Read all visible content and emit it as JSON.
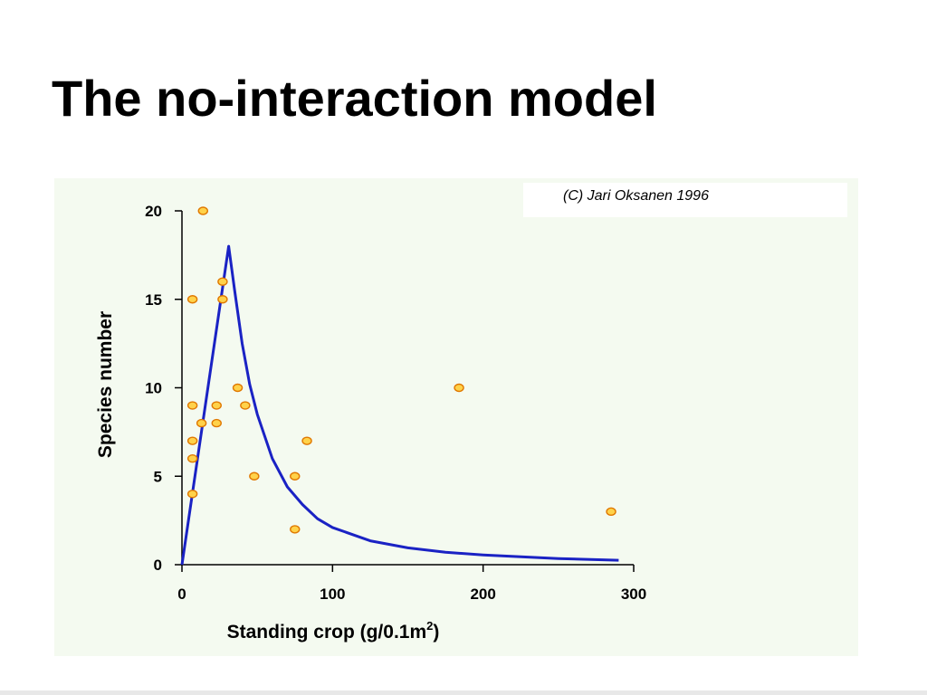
{
  "slide": {
    "title": "The no-interaction model",
    "credit": "(C) Jari Oksanen 1996"
  },
  "colors": {
    "panel_bg": "#f4faf0",
    "curve": "#1a22c4",
    "point_fill": "#ffd24a",
    "point_stroke": "#e07800"
  },
  "chart_data": {
    "type": "scatter",
    "xlabel": "Standing crop (g/0.1m",
    "xlabel_sup": "2",
    "xlabel_suffix": ")",
    "ylabel": "Species number",
    "xlim": [
      0,
      300
    ],
    "ylim": [
      0,
      20
    ],
    "x_ticks": [
      0,
      100,
      200,
      300
    ],
    "y_ticks": [
      0,
      5,
      10,
      15,
      20
    ],
    "grid": false,
    "legend": "none",
    "points": [
      {
        "x": 14,
        "y": 20
      },
      {
        "x": 7,
        "y": 15
      },
      {
        "x": 27,
        "y": 16
      },
      {
        "x": 27,
        "y": 15
      },
      {
        "x": 7,
        "y": 9
      },
      {
        "x": 13,
        "y": 8
      },
      {
        "x": 23,
        "y": 9
      },
      {
        "x": 23,
        "y": 8
      },
      {
        "x": 37,
        "y": 10
      },
      {
        "x": 42,
        "y": 9
      },
      {
        "x": 7,
        "y": 7
      },
      {
        "x": 7,
        "y": 6
      },
      {
        "x": 7,
        "y": 4
      },
      {
        "x": 48,
        "y": 5
      },
      {
        "x": 75,
        "y": 5
      },
      {
        "x": 83,
        "y": 7
      },
      {
        "x": 75,
        "y": 2
      },
      {
        "x": 184,
        "y": 10
      },
      {
        "x": 285,
        "y": 3
      }
    ],
    "fit_curve": {
      "x": [
        0,
        31,
        35,
        40,
        45,
        50,
        60,
        70,
        80,
        90,
        100,
        125,
        150,
        175,
        200,
        225,
        250,
        290
      ],
      "y": [
        0,
        18,
        15.5,
        12.5,
        10.2,
        8.5,
        6.0,
        4.4,
        3.4,
        2.6,
        2.1,
        1.35,
        0.95,
        0.7,
        0.55,
        0.45,
        0.35,
        0.25
      ]
    }
  }
}
